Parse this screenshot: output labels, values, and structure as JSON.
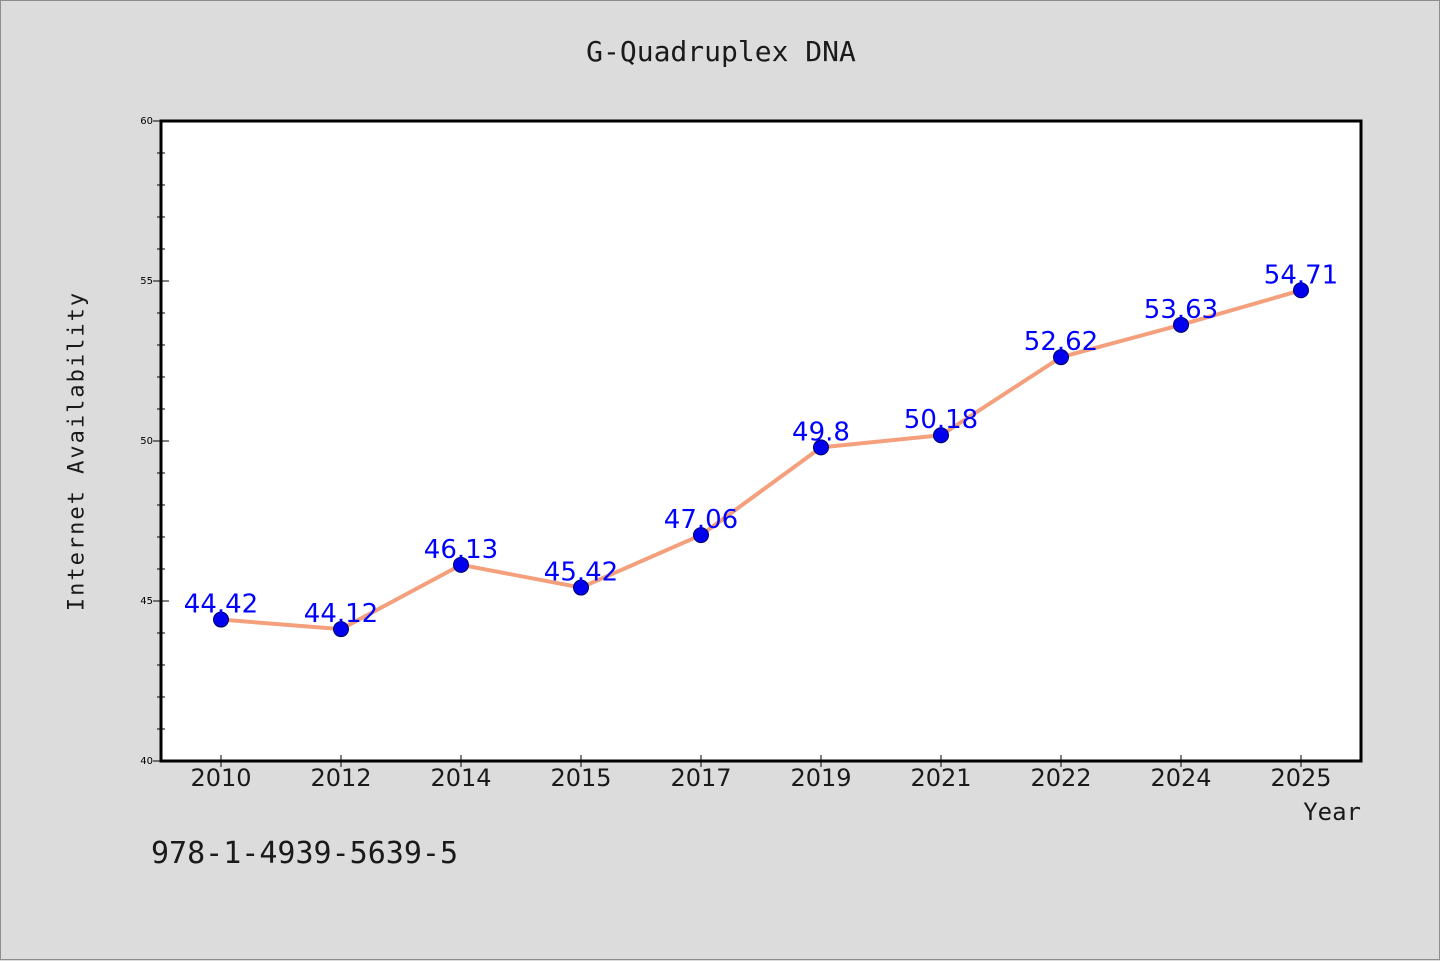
{
  "chart_data": {
    "type": "line",
    "title": "G-Quadruplex DNA",
    "xlabel": "Year",
    "ylabel": "Internet Availability",
    "categories": [
      "2010",
      "2012",
      "2014",
      "2015",
      "2017",
      "2019",
      "2021",
      "2022",
      "2024",
      "2025"
    ],
    "values": [
      44.42,
      44.12,
      46.13,
      45.42,
      47.06,
      49.8,
      50.18,
      52.62,
      53.63,
      54.71
    ],
    "data_labels": [
      "44.42",
      "44.12",
      "46.13",
      "45.42",
      "47.06",
      "49.8",
      "50.18",
      "52.62",
      "53.63",
      "54.71"
    ],
    "ylim": [
      40,
      60
    ],
    "yticks": [
      40,
      45,
      50,
      55,
      60
    ],
    "y_minor_step": 1,
    "grid": false,
    "line_color": "#f4a07c",
    "marker_color": "#0000ee",
    "label_color": "#0000ff"
  },
  "annotation": "978-1-4939-5639-5"
}
